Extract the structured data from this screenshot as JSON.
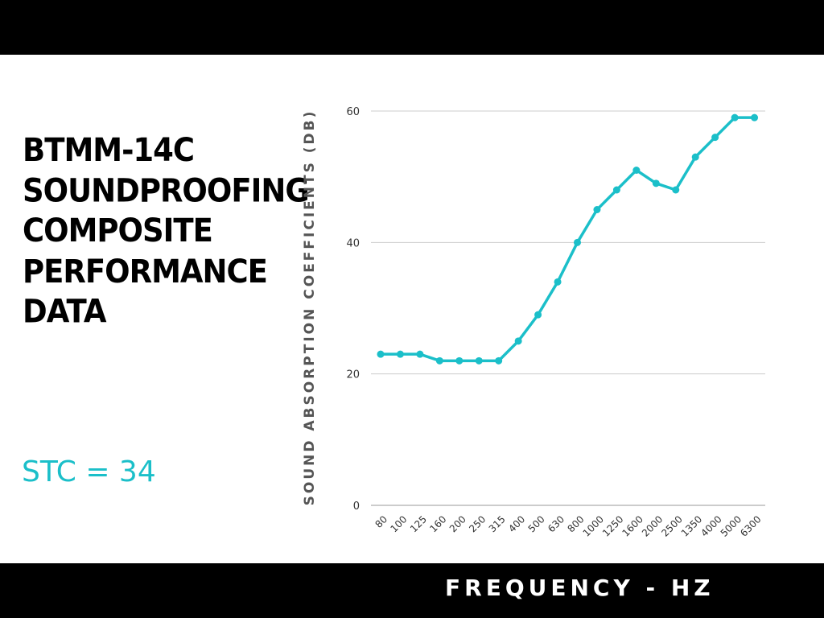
{
  "title_lines": [
    "BTMM-14C",
    "SOUNDPROOFING",
    "COMPOSITE",
    "PERFORMANCE",
    "DATA"
  ],
  "stc_label": "STC = 34",
  "colors": {
    "accent": "#1bbfc9",
    "bars": "#000000",
    "gridline": "#cccccc",
    "axis_label": "#555555"
  },
  "chart_data": {
    "type": "line",
    "title": "",
    "xlabel": "FREQUENCY - HZ",
    "ylabel": "SOUND ABSORPTION COEFFICIENTS (DB)",
    "categories": [
      "80",
      "100",
      "125",
      "160",
      "200",
      "250",
      "315",
      "400",
      "500",
      "630",
      "800",
      "1000",
      "1250",
      "1600",
      "2000",
      "2500",
      "1350",
      "4000",
      "5000",
      "6300"
    ],
    "series": [
      {
        "values": [
          23,
          23,
          23,
          22,
          22,
          22,
          22,
          25,
          29,
          34,
          40,
          45,
          48,
          51,
          49,
          48,
          53,
          56,
          59,
          59
        ]
      }
    ],
    "ylim": [
      0,
      60
    ],
    "yticks": [
      0,
      20,
      40,
      60
    ],
    "grid": true,
    "legend": "none"
  }
}
